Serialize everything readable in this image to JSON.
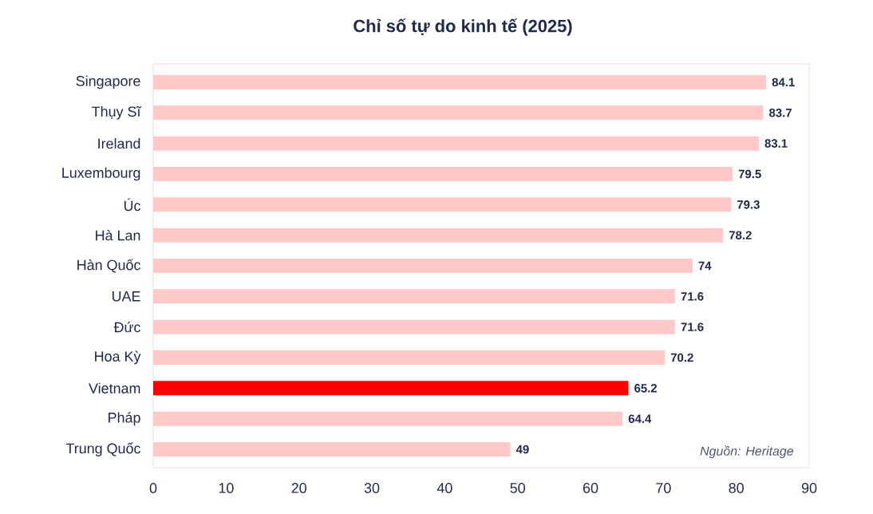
{
  "chart_data": {
    "type": "bar",
    "orientation": "horizontal",
    "title": "Chỉ số tự do kinh tế (2025)",
    "categories": [
      "Singapore",
      "Thụy Sĩ",
      "Ireland",
      "Luxembourg",
      "Úc",
      "Hà Lan",
      "Hàn Quốc",
      "UAE",
      "Đức",
      "Hoa Kỳ",
      "Vietnam",
      "Pháp",
      "Trung Quốc"
    ],
    "values": [
      84.1,
      83.7,
      83.1,
      79.5,
      79.3,
      78.2,
      74,
      71.6,
      71.6,
      70.2,
      65.2,
      64.4,
      49
    ],
    "colors": [
      "#ffc9c9",
      "#ffc9c9",
      "#ffc9c9",
      "#ffc9c9",
      "#ffc9c9",
      "#ffc9c9",
      "#ffc9c9",
      "#ffc9c9",
      "#ffc9c9",
      "#ffc9c9",
      "#ff0000",
      "#ffc9c9",
      "#ffc9c9"
    ],
    "data_labels": true,
    "grid": false,
    "xlim": [
      0,
      90
    ],
    "xticks": [
      0,
      10,
      20,
      30,
      40,
      50,
      60,
      70,
      80,
      90
    ],
    "annotations": [
      "Nguồn: Heritage"
    ]
  }
}
